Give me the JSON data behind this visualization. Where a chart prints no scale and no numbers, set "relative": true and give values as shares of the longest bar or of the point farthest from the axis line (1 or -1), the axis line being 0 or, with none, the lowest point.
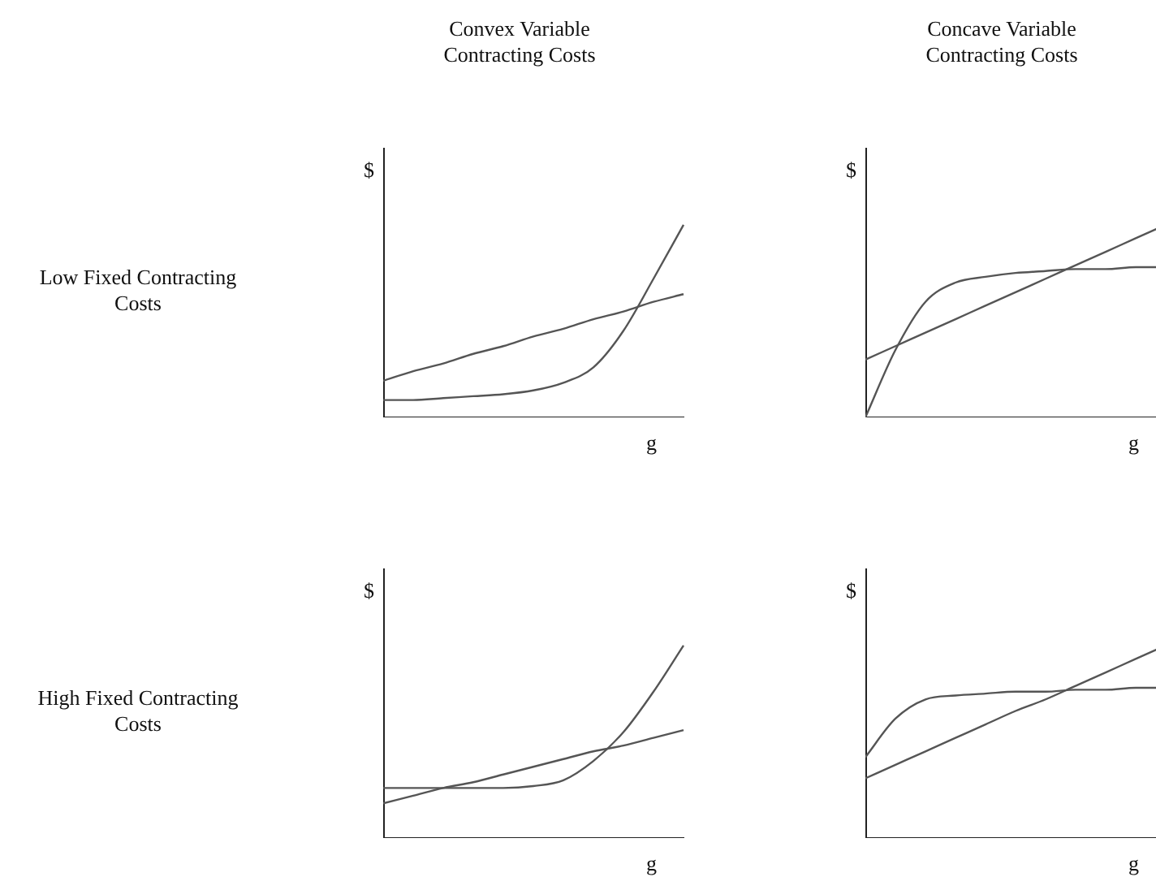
{
  "chart_data": [
    {
      "type": "line",
      "relative": true,
      "title": "Convex Variable Contracting Costs",
      "annotations": [
        "Low Fixed Contracting Costs"
      ],
      "xlabel": "g",
      "ylabel": "$",
      "marker": "none",
      "categories": [
        null,
        null,
        null,
        null,
        null,
        null,
        null,
        null,
        null,
        null,
        null
      ],
      "series": [
        {
          "color": "#555555",
          "values": [
            0.19,
            0.24,
            0.28,
            0.33,
            0.37,
            0.42,
            0.46,
            0.51,
            0.55,
            0.6,
            0.64
          ]
        },
        {
          "color": "#555555",
          "values": [
            0.09,
            0.09,
            0.1,
            0.11,
            0.12,
            0.14,
            0.18,
            0.26,
            0.45,
            0.72,
            1.0
          ]
        }
      ]
    },
    {
      "type": "line",
      "relative": true,
      "title": "Concave Variable Contracting Costs",
      "xlabel": "g",
      "ylabel": "$",
      "marker": "none",
      "categories": [
        null,
        null,
        null,
        null,
        null,
        null,
        null,
        null,
        null,
        null,
        null
      ],
      "series": [
        {
          "color": "#555555",
          "values": [
            0.3,
            0.37,
            0.44,
            0.51,
            0.58,
            0.65,
            0.72,
            0.79,
            0.86,
            0.93,
            1.0
          ]
        },
        {
          "color": "#555555",
          "values": [
            0.0,
            0.35,
            0.6,
            0.7,
            0.73,
            0.75,
            0.76,
            0.77,
            0.77,
            0.78,
            0.78
          ]
        }
      ]
    },
    {
      "type": "line",
      "relative": true,
      "annotations": [
        "High Fixed Contracting Costs"
      ],
      "xlabel": "g",
      "ylabel": "$",
      "marker": "none",
      "categories": [
        null,
        null,
        null,
        null,
        null,
        null,
        null,
        null,
        null,
        null,
        null
      ],
      "series": [
        {
          "color": "#555555",
          "values": [
            0.18,
            0.22,
            0.26,
            0.29,
            0.33,
            0.37,
            0.41,
            0.45,
            0.48,
            0.52,
            0.56
          ]
        },
        {
          "color": "#555555",
          "values": [
            0.26,
            0.26,
            0.26,
            0.26,
            0.26,
            0.27,
            0.3,
            0.4,
            0.55,
            0.76,
            1.0
          ]
        }
      ]
    },
    {
      "type": "line",
      "relative": true,
      "xlabel": "g",
      "ylabel": "$",
      "marker": "none",
      "categories": [
        null,
        null,
        null,
        null,
        null,
        null,
        null,
        null,
        null,
        null,
        null
      ],
      "series": [
        {
          "color": "#555555",
          "values": [
            0.31,
            0.38,
            0.45,
            0.52,
            0.59,
            0.66,
            0.72,
            0.79,
            0.86,
            0.93,
            1.0
          ]
        },
        {
          "color": "#555555",
          "values": [
            0.42,
            0.62,
            0.72,
            0.74,
            0.75,
            0.76,
            0.76,
            0.77,
            0.77,
            0.78,
            0.78
          ]
        }
      ]
    }
  ]
}
